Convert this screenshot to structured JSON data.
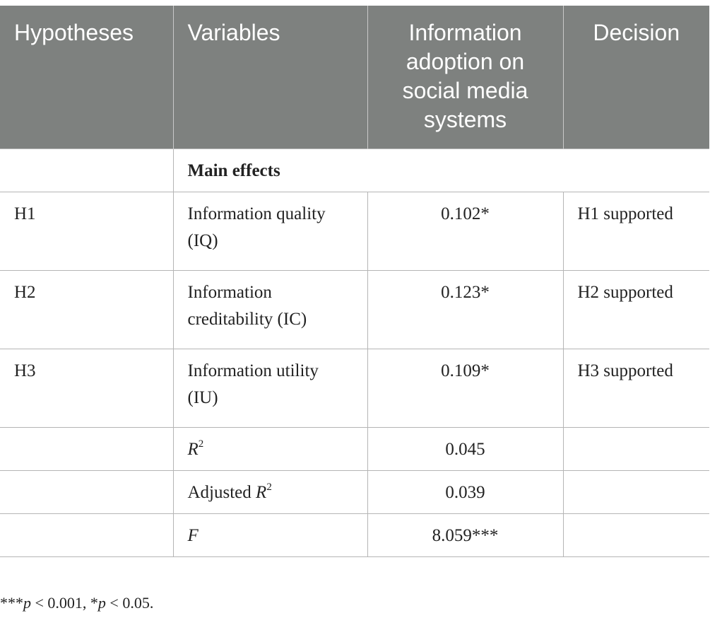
{
  "headers": {
    "hypotheses": "Hypotheses",
    "variables": "Variables",
    "adoption": "Information adoption on social media systems",
    "decision": "Decision"
  },
  "section_label": "Main effects",
  "hypothesis_rows": [
    {
      "hypothesis": "H1",
      "variable": "Information quality (IQ)",
      "value": "0.102*",
      "decision": "H1 supported"
    },
    {
      "hypothesis": "H2",
      "variable": "Information creditability (IC)",
      "value": "0.123*",
      "decision": "H2 supported"
    },
    {
      "hypothesis": "H3",
      "variable": "Information utility (IU)",
      "value": "0.109*",
      "decision": "H3 supported"
    }
  ],
  "stats": {
    "r2": {
      "label": "R",
      "sup": "2",
      "value": "0.045"
    },
    "adj_r2": {
      "label_prefix": "Adjusted ",
      "label": "R",
      "sup": "2",
      "value": "0.039"
    },
    "f": {
      "label": "F",
      "value": "8.059***"
    }
  },
  "footnote": {
    "stars1": "***",
    "p1": "p",
    "rest1": " < 0.001, *",
    "p2": "p",
    "rest2": " < 0.05."
  }
}
